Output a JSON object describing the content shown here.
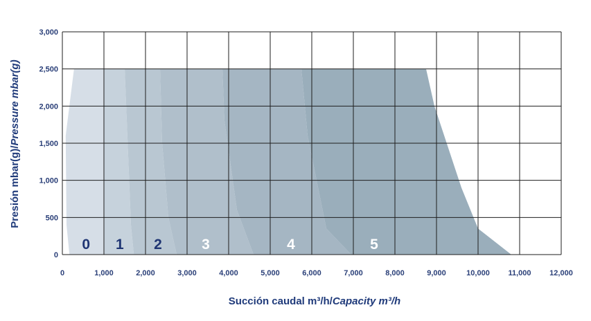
{
  "chart_data": {
    "type": "area",
    "xlabel": "Succión caudal m³/h/",
    "xlabel_italic": "Capacity m³/h",
    "ylabel": "Presión mbar(g)/",
    "ylabel_italic": "Pressure mbar(g)",
    "xlim": [
      0,
      12000
    ],
    "ylim": [
      0,
      3000
    ],
    "x_ticks": [
      0,
      1000,
      2000,
      3000,
      4000,
      5000,
      6000,
      7000,
      8000,
      9000,
      10000,
      11000,
      12000
    ],
    "x_tick_labels": [
      "0",
      "1,000",
      "2,000",
      "3,000",
      "4,000",
      "5,000",
      "6,000",
      "7,000",
      "8,000",
      "9,000",
      "10,000",
      "11,000",
      "12,000"
    ],
    "y_ticks": [
      0,
      500,
      1000,
      1500,
      2000,
      2500,
      3000
    ],
    "y_tick_labels": [
      "0",
      "500",
      "1,000",
      "1,500",
      "2,000",
      "2,500",
      "3,000"
    ],
    "grid": true,
    "series": [
      {
        "name": "0",
        "color": "#d6dee7",
        "label_pos": [
          570,
          150
        ],
        "label_color": "#1f3573",
        "points": [
          [
            170,
            0
          ],
          [
            100,
            400
          ],
          [
            80,
            1600
          ],
          [
            280,
            2500
          ],
          [
            1000,
            2500
          ],
          [
            1000,
            0
          ]
        ]
      },
      {
        "name": "1",
        "color": "#c6d2dc",
        "label_pos": [
          1380,
          150
        ],
        "label_color": "#1f3573",
        "points": [
          [
            1000,
            0
          ],
          [
            1000,
            2500
          ],
          [
            1500,
            2500
          ],
          [
            1550,
            1800
          ],
          [
            1650,
            400
          ],
          [
            1720,
            0
          ]
        ]
      },
      {
        "name": "2",
        "color": "#b9c7d2",
        "label_pos": [
          2300,
          150
        ],
        "label_color": "#1f3573",
        "points": [
          [
            1720,
            0
          ],
          [
            1650,
            400
          ],
          [
            1550,
            1800
          ],
          [
            1500,
            2500
          ],
          [
            2350,
            2500
          ],
          [
            2400,
            1500
          ],
          [
            2550,
            500
          ],
          [
            2750,
            0
          ]
        ]
      },
      {
        "name": "3",
        "color": "#b0bfcb",
        "label_pos": [
          3450,
          150
        ],
        "label_color": "#ffffff",
        "points": [
          [
            2750,
            0
          ],
          [
            2550,
            500
          ],
          [
            2400,
            1500
          ],
          [
            2350,
            2500
          ],
          [
            3850,
            2500
          ],
          [
            3900,
            1800
          ],
          [
            4200,
            600
          ],
          [
            4600,
            0
          ]
        ]
      },
      {
        "name": "4",
        "color": "#a5b6c3",
        "label_pos": [
          5500,
          150
        ],
        "label_color": "#ffffff",
        "points": [
          [
            4600,
            0
          ],
          [
            4200,
            600
          ],
          [
            3900,
            1800
          ],
          [
            3850,
            2500
          ],
          [
            5750,
            2500
          ],
          [
            5900,
            1600
          ],
          [
            6350,
            350
          ],
          [
            6950,
            0
          ]
        ]
      },
      {
        "name": "5",
        "color": "#9aaebb",
        "label_pos": [
          7500,
          150
        ],
        "label_color": "#ffffff",
        "points": [
          [
            6950,
            0
          ],
          [
            6350,
            350
          ],
          [
            5900,
            1600
          ],
          [
            5750,
            2500
          ],
          [
            8750,
            2500
          ],
          [
            8950,
            2000
          ],
          [
            9600,
            900
          ],
          [
            10000,
            350
          ],
          [
            10800,
            0
          ]
        ]
      }
    ]
  }
}
